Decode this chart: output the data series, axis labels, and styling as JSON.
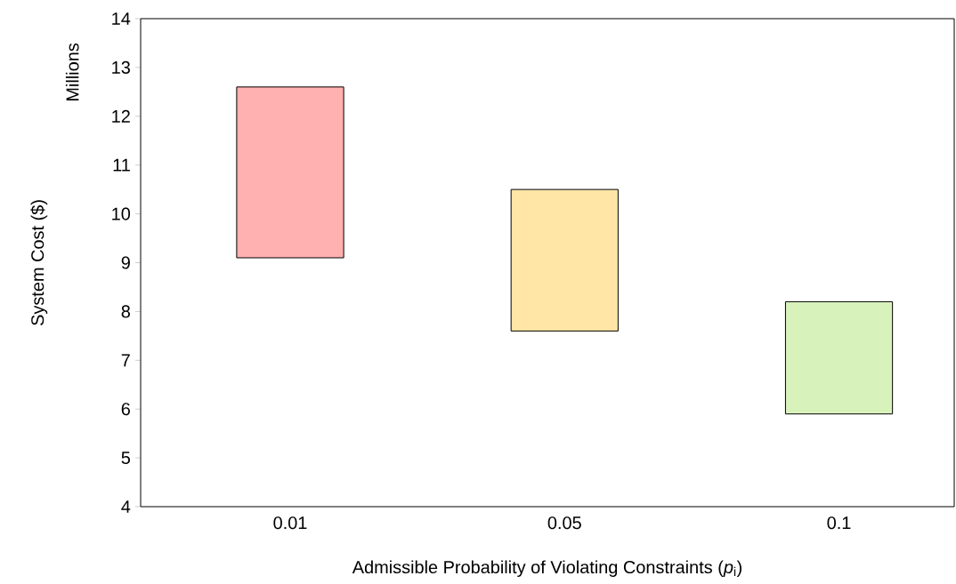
{
  "chart_data": {
    "type": "bar",
    "xlabel": "Admissible Probability of Violating Constraints (*p*$_{i}$)",
    "ylabel": "System Cost ($)",
    "annotations": [
      "Millions"
    ],
    "categories": [
      "0.01",
      "0.05",
      "0.1"
    ],
    "base": [
      9.1,
      7.6,
      5.9
    ],
    "values": [
      3.5,
      2.9,
      2.3
    ],
    "colors": [
      "#ffb0b0",
      "#ffe6a6",
      "#d8f2bc"
    ],
    "ylim": [
      4,
      14
    ],
    "yticks": [
      4,
      5,
      6,
      7,
      8,
      9,
      10,
      11,
      12,
      13,
      14
    ],
    "grid": false
  }
}
